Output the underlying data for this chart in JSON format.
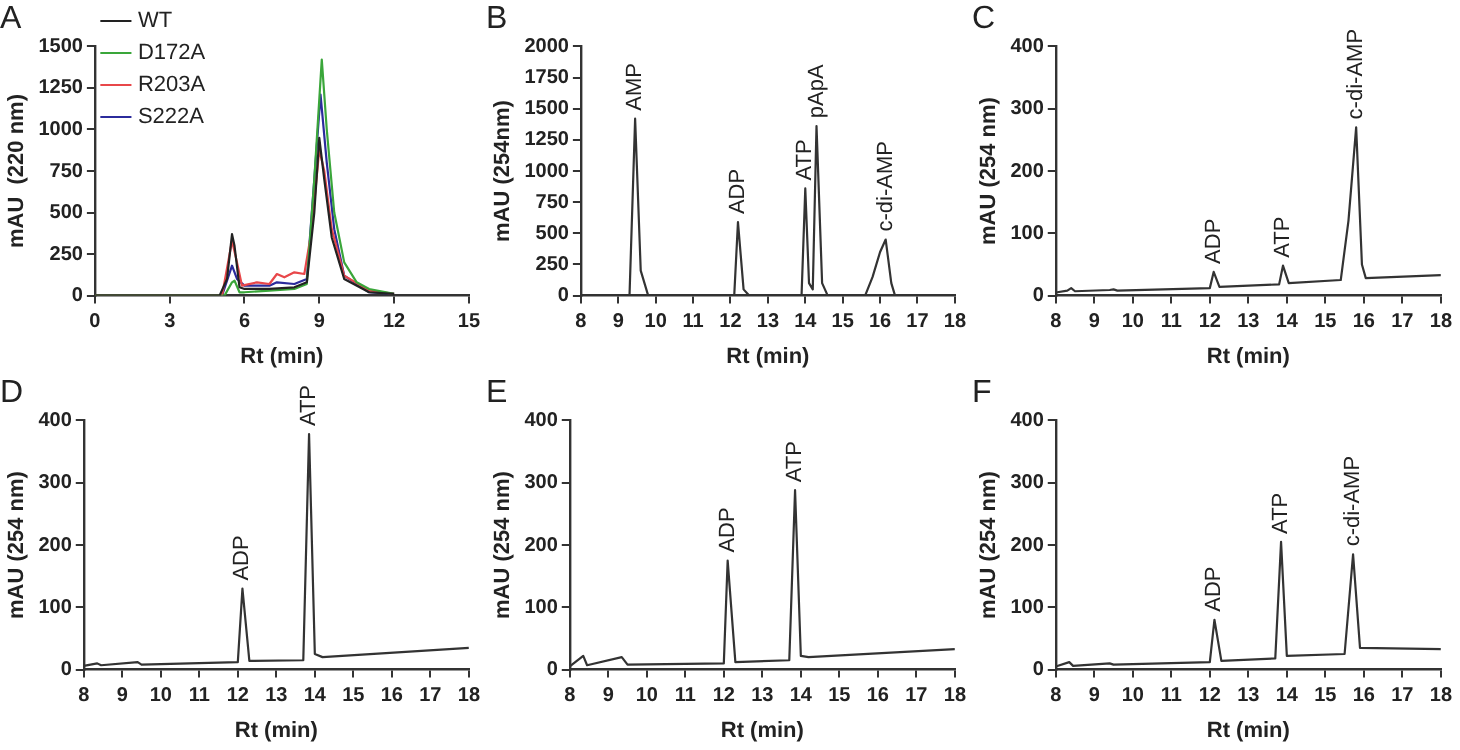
{
  "chart_data": [
    {
      "type": "line",
      "title": "A",
      "xlabel": "Rt (min)",
      "ylabel": "mAU  (220 nm)",
      "xlim": [
        0,
        15
      ],
      "xticks": [
        0,
        3,
        6,
        9,
        12,
        15
      ],
      "ylim": [
        0,
        1500
      ],
      "yticks": [
        0,
        250,
        500,
        750,
        1000,
        1250,
        1500
      ],
      "grid": false,
      "legend": "top left",
      "marker": "none",
      "line_style": "solid",
      "series": [
        {
          "name": "WT",
          "color": "#222222",
          "x": [
            0,
            5.0,
            5.3,
            5.5,
            5.6,
            5.8,
            6,
            7,
            8,
            8.5,
            8.8,
            9.0,
            9.2,
            9.5,
            10,
            11,
            12
          ],
          "values": [
            0,
            0,
            100,
            370,
            300,
            50,
            40,
            40,
            50,
            80,
            500,
            950,
            700,
            350,
            100,
            20,
            10
          ]
        },
        {
          "name": "D172A",
          "color": "#3aa63a",
          "x": [
            0,
            5.2,
            5.5,
            5.6,
            5.8,
            6,
            7,
            8,
            8.5,
            8.8,
            9.1,
            9.3,
            9.6,
            10,
            10.5,
            11,
            12
          ],
          "values": [
            0,
            0,
            80,
            90,
            20,
            20,
            30,
            40,
            70,
            700,
            1420,
            1000,
            500,
            200,
            80,
            40,
            10
          ]
        },
        {
          "name": "R203A",
          "color": "#e8474a",
          "x": [
            0,
            5.1,
            5.5,
            5.7,
            5.9,
            6.5,
            7,
            7.3,
            7.6,
            8,
            8.4,
            8.7,
            9.0,
            9.2,
            9.5,
            10,
            11,
            12
          ],
          "values": [
            0,
            0,
            330,
            200,
            60,
            80,
            70,
            130,
            110,
            140,
            130,
            400,
            880,
            750,
            400,
            120,
            30,
            10
          ]
        },
        {
          "name": "S222A",
          "color": "#2b2b9c",
          "x": [
            0,
            5.1,
            5.5,
            5.7,
            6,
            7,
            7.3,
            8,
            8.5,
            8.8,
            9.05,
            9.3,
            9.6,
            10,
            11,
            12
          ],
          "values": [
            0,
            0,
            180,
            100,
            60,
            60,
            80,
            70,
            100,
            700,
            1210,
            800,
            400,
            120,
            20,
            10
          ]
        }
      ]
    },
    {
      "type": "line",
      "title": "B",
      "xlabel": "Rt (min)",
      "ylabel": "mAU (254nm)",
      "xlim": [
        8,
        18
      ],
      "xticks": [
        8,
        9,
        10,
        11,
        12,
        13,
        14,
        15,
        16,
        17,
        18
      ],
      "ylim": [
        0,
        2000
      ],
      "yticks": [
        0,
        250,
        500,
        750,
        1000,
        1250,
        1500,
        1750,
        2000
      ],
      "grid": false,
      "legend": false,
      "marker": "none",
      "line_style": "solid",
      "series": [
        {
          "color": "#333333",
          "x": [
            8,
            9.3,
            9.45,
            9.6,
            9.8,
            12.1,
            12.2,
            12.35,
            12.5,
            13.9,
            14.0,
            14.1,
            14.2,
            14.3,
            14.45,
            14.6,
            15.6,
            15.8,
            16.0,
            16.15,
            16.3,
            16.4,
            18
          ],
          "values": [
            0,
            0,
            1420,
            200,
            0,
            0,
            590,
            50,
            0,
            0,
            860,
            100,
            50,
            1360,
            100,
            0,
            0,
            150,
            350,
            450,
            100,
            0,
            0
          ]
        }
      ],
      "annotations": [
        {
          "text": "AMP",
          "x": 9.45,
          "y": 1420
        },
        {
          "text": "ADP",
          "x": 12.2,
          "y": 590
        },
        {
          "text": "ATP",
          "x": 14.0,
          "y": 860
        },
        {
          "text": "pApA",
          "x": 14.3,
          "y": 1360
        },
        {
          "text": "c-di-AMP",
          "x": 16.15,
          "y": 450
        }
      ]
    },
    {
      "type": "line",
      "title": "C",
      "xlabel": "Rt (min)",
      "ylabel": "mAU (254 nm)",
      "xlim": [
        8,
        18
      ],
      "xticks": [
        8,
        9,
        10,
        11,
        12,
        13,
        14,
        15,
        16,
        17,
        18
      ],
      "ylim": [
        0,
        400
      ],
      "yticks": [
        0,
        100,
        200,
        300,
        400
      ],
      "grid": false,
      "legend": false,
      "marker": "none",
      "line_style": "solid",
      "series": [
        {
          "color": "#333333",
          "x": [
            8,
            8.3,
            8.4,
            8.5,
            9.4,
            9.5,
            9.6,
            12.0,
            12.1,
            12.25,
            13.8,
            13.9,
            14.05,
            15.4,
            15.6,
            15.8,
            15.95,
            16.05,
            18
          ],
          "values": [
            5,
            8,
            12,
            7,
            9,
            10,
            8,
            12,
            38,
            14,
            18,
            48,
            20,
            25,
            120,
            270,
            50,
            28,
            33
          ]
        }
      ],
      "annotations": [
        {
          "text": "ADP",
          "x": 12.1,
          "y": 38
        },
        {
          "text": "ATP",
          "x": 13.9,
          "y": 48
        },
        {
          "text": "c-di-AMP",
          "x": 15.8,
          "y": 270
        }
      ]
    },
    {
      "type": "line",
      "title": "D",
      "xlabel": "Rt (min)",
      "ylabel": "mAU (254 nm)",
      "xlim": [
        8,
        18
      ],
      "xticks": [
        8,
        9,
        10,
        11,
        12,
        13,
        14,
        15,
        16,
        17,
        18
      ],
      "ylim": [
        0,
        400
      ],
      "yticks": [
        0,
        100,
        200,
        300,
        400
      ],
      "grid": false,
      "legend": false,
      "marker": "none",
      "line_style": "solid",
      "series": [
        {
          "color": "#333333",
          "x": [
            8,
            8.35,
            8.45,
            9.4,
            9.5,
            12.0,
            12.12,
            12.3,
            13.7,
            13.85,
            14.0,
            14.2,
            18
          ],
          "values": [
            6,
            10,
            7,
            12,
            8,
            12,
            130,
            14,
            15,
            378,
            25,
            20,
            35
          ]
        }
      ],
      "annotations": [
        {
          "text": "ADP",
          "x": 12.12,
          "y": 130
        },
        {
          "text": "ATP",
          "x": 13.85,
          "y": 378
        }
      ]
    },
    {
      "type": "line",
      "title": "E",
      "xlabel": "Rt (min)",
      "ylabel": "mAU (254 nm)",
      "xlim": [
        8,
        18
      ],
      "xticks": [
        8,
        9,
        10,
        11,
        12,
        13,
        14,
        15,
        16,
        17,
        18
      ],
      "ylim": [
        0,
        400
      ],
      "yticks": [
        0,
        100,
        200,
        300,
        400
      ],
      "grid": false,
      "legend": false,
      "marker": "none",
      "line_style": "solid",
      "series": [
        {
          "color": "#333333",
          "x": [
            8,
            8.35,
            8.45,
            9.35,
            9.5,
            12.0,
            12.1,
            12.3,
            13.7,
            13.85,
            14.0,
            14.2,
            18
          ],
          "values": [
            5,
            22,
            7,
            20,
            8,
            10,
            175,
            12,
            15,
            288,
            22,
            20,
            33
          ]
        }
      ],
      "annotations": [
        {
          "text": "ADP",
          "x": 12.1,
          "y": 175
        },
        {
          "text": "ATP",
          "x": 13.85,
          "y": 288
        }
      ]
    },
    {
      "type": "line",
      "title": "F",
      "xlabel": "Rt (min)",
      "ylabel": "mAU (254 nm)",
      "xlim": [
        8,
        18
      ],
      "xticks": [
        8,
        9,
        10,
        11,
        12,
        13,
        14,
        15,
        16,
        17,
        18
      ],
      "ylim": [
        0,
        400
      ],
      "yticks": [
        0,
        100,
        200,
        300,
        400
      ],
      "grid": false,
      "legend": false,
      "marker": "none",
      "line_style": "solid",
      "series": [
        {
          "color": "#333333",
          "x": [
            8,
            8.35,
            8.45,
            9.4,
            9.5,
            12.0,
            12.12,
            12.3,
            13.7,
            13.85,
            14.0,
            15.5,
            15.72,
            15.9,
            18
          ],
          "values": [
            5,
            12,
            6,
            10,
            8,
            12,
            80,
            14,
            18,
            205,
            22,
            25,
            185,
            35,
            33
          ]
        }
      ],
      "annotations": [
        {
          "text": "ADP",
          "x": 12.12,
          "y": 80
        },
        {
          "text": "ATP",
          "x": 13.85,
          "y": 205
        },
        {
          "text": "c-di-AMP",
          "x": 15.72,
          "y": 185
        }
      ]
    }
  ]
}
